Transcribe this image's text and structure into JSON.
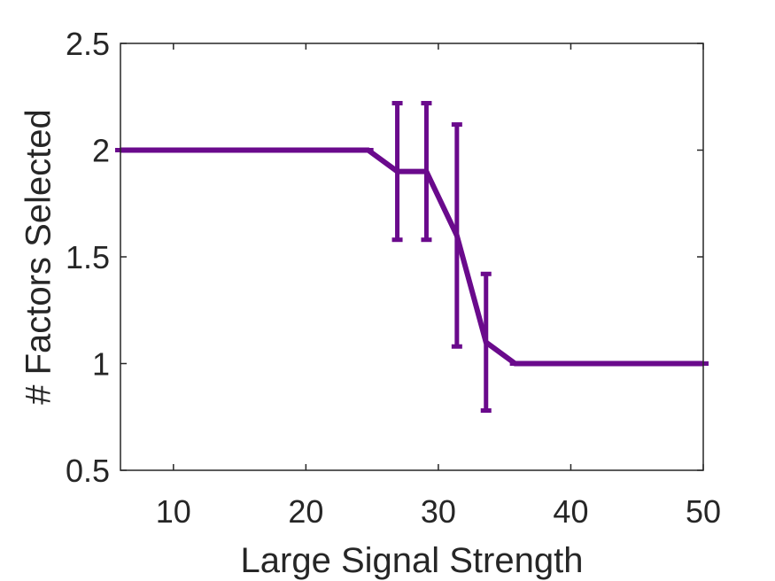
{
  "chart_data": {
    "type": "line",
    "xlabel": "Large Signal Strength",
    "ylabel": "# Factors Selected",
    "xlim": [
      6,
      50
    ],
    "ylim": [
      0.5,
      2.5
    ],
    "xticks": [
      10,
      20,
      30,
      40,
      50
    ],
    "yticks": [
      0.5,
      1,
      1.5,
      2,
      2.5
    ],
    "xtick_labels": [
      "10",
      "20",
      "30",
      "40",
      "50"
    ],
    "ytick_labels": [
      "0.5",
      "1",
      "1.5",
      "2",
      "2.5"
    ],
    "grid": false,
    "series": [
      {
        "color": "#6a0a8c",
        "x": [
          6,
          8.2,
          10.4,
          12.6,
          14.8,
          17,
          19.2,
          21.4,
          23.6,
          24.7,
          26.9,
          29.1,
          31.4,
          33.6,
          35.8,
          50
        ],
        "y": [
          2,
          2,
          2,
          2,
          2,
          2,
          2,
          2,
          2,
          2,
          1.9,
          1.9,
          1.6,
          1.1,
          1,
          1
        ],
        "err": [
          0,
          0,
          0,
          0,
          0,
          0,
          0,
          0,
          0,
          0,
          0.32,
          0.32,
          0.52,
          0.32,
          0,
          0
        ]
      }
    ]
  }
}
